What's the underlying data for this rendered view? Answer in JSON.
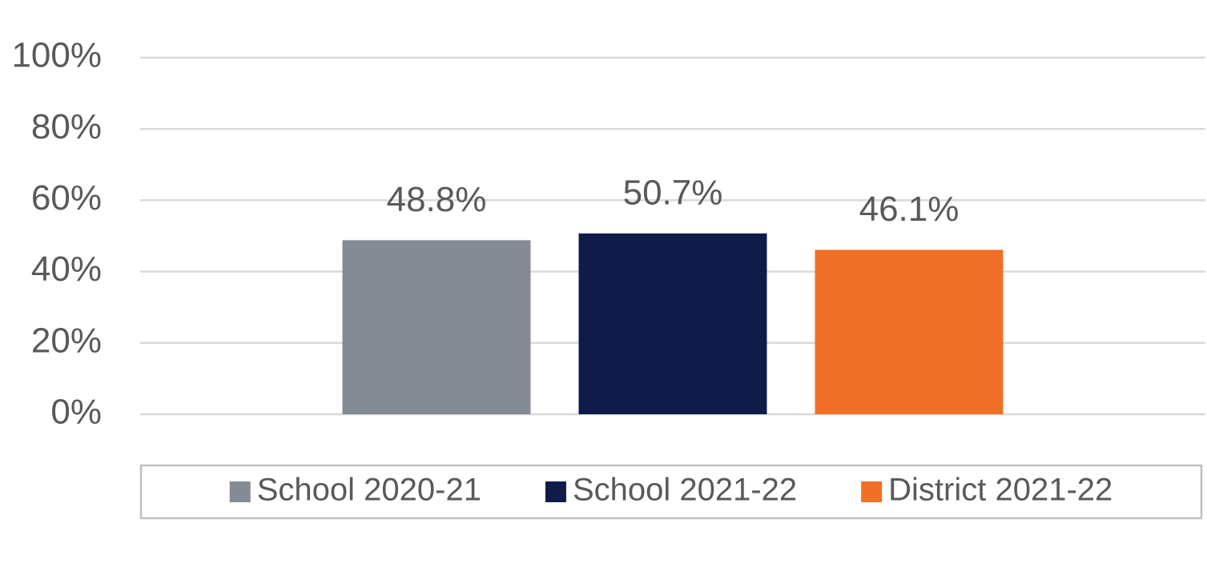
{
  "chart_data": {
    "type": "bar",
    "categories": [
      null
    ],
    "series": [
      {
        "name": "School 2020-21",
        "color": "#848b94",
        "values": [
          48.8
        ],
        "value_labels": [
          "48.8%"
        ]
      },
      {
        "name": "School 2021-22",
        "color": "#0f1c4a",
        "values": [
          50.7
        ],
        "value_labels": [
          "50.7%"
        ]
      },
      {
        "name": "District 2021-22",
        "color": "#f07027",
        "values": [
          46.1
        ],
        "value_labels": [
          "46.1%"
        ]
      }
    ],
    "ylim": [
      0,
      100
    ],
    "yticks": [
      {
        "value": 0,
        "label": "0%"
      },
      {
        "value": 20,
        "label": "20%"
      },
      {
        "value": 40,
        "label": "40%"
      },
      {
        "value": 60,
        "label": "60%"
      },
      {
        "value": 80,
        "label": "80%"
      },
      {
        "value": 100,
        "label": "100%"
      }
    ],
    "grid": true,
    "legend": "bottom"
  }
}
